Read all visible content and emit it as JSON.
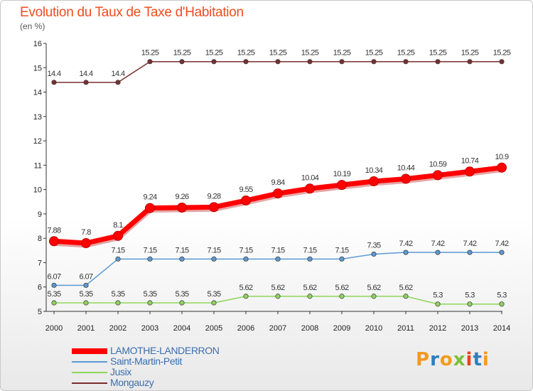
{
  "chart_data": {
    "type": "line",
    "title": "Evolution du Taux de Taxe d'Habitation",
    "subtitle": "(en %)",
    "x": [
      2000,
      2001,
      2002,
      2003,
      2004,
      2005,
      2006,
      2007,
      2008,
      2009,
      2010,
      2011,
      2012,
      2013,
      2014
    ],
    "ylim": [
      5,
      16
    ],
    "yticks": [
      5,
      6,
      7,
      8,
      9,
      10,
      11,
      12,
      13,
      14,
      15,
      16
    ],
    "grid": false,
    "legend_position": "bottom-left",
    "series": [
      {
        "name": "LAMOTHE-LANDERRON",
        "color": "#ff0000",
        "values": [
          7.88,
          7.8,
          8.1,
          9.24,
          9.26,
          9.28,
          9.55,
          9.84,
          10.04,
          10.19,
          10.34,
          10.44,
          10.59,
          10.74,
          10.9
        ],
        "labels": [
          "7.88",
          "7.8",
          "8.1",
          "9.24",
          "9.26",
          "9.28",
          "9.55",
          "9.84",
          "10.04",
          "10.19",
          "10.34",
          "10.44",
          "10.59",
          "10.74",
          "10.9"
        ]
      },
      {
        "name": "Saint-Martin-Petit",
        "color": "#5a9ad5",
        "values": [
          6.07,
          6.07,
          7.15,
          7.15,
          7.15,
          7.15,
          7.15,
          7.15,
          7.15,
          7.15,
          7.35,
          7.42,
          7.42,
          7.42,
          7.42
        ],
        "labels": [
          "6.07",
          "6.07",
          "7.15",
          "7.15",
          "7.15",
          "7.15",
          "7.15",
          "7.15",
          "7.15",
          "7.15",
          "7.35",
          "7.42",
          "7.42",
          "7.42",
          "7.42"
        ]
      },
      {
        "name": "Jusix",
        "color": "#8fd65a",
        "values": [
          5.35,
          5.35,
          5.35,
          5.35,
          5.35,
          5.35,
          5.62,
          5.62,
          5.62,
          5.62,
          5.62,
          5.62,
          5.3,
          5.3,
          5.3
        ],
        "labels": [
          "5.35",
          "5.35",
          "5.35",
          "5.35",
          "5.35",
          "5.35",
          "5.62",
          "5.62",
          "5.62",
          "5.62",
          "5.62",
          "5.62",
          "5.3",
          "5.3",
          "5.3"
        ]
      },
      {
        "name": "Mongauzy",
        "color": "#7a2e2e",
        "values": [
          14.4,
          14.4,
          14.4,
          15.25,
          15.25,
          15.25,
          15.25,
          15.25,
          15.25,
          15.25,
          15.25,
          15.25,
          15.25,
          15.25,
          15.25
        ],
        "labels": [
          "14.4",
          "14.4",
          "14.4",
          "15.25",
          "15.25",
          "15.25",
          "15.25",
          "15.25",
          "15.25",
          "15.25",
          "15.25",
          "15.25",
          "15.25",
          "15.25",
          "15.25"
        ]
      }
    ]
  },
  "logo": {
    "text": "Proxiti",
    "letter_colors": [
      "#f39a1e",
      "#2e7fc1",
      "#f39a1e",
      "#7dbf3a",
      "#e8421e",
      "#2e7fc1",
      "#f39a1e"
    ]
  }
}
